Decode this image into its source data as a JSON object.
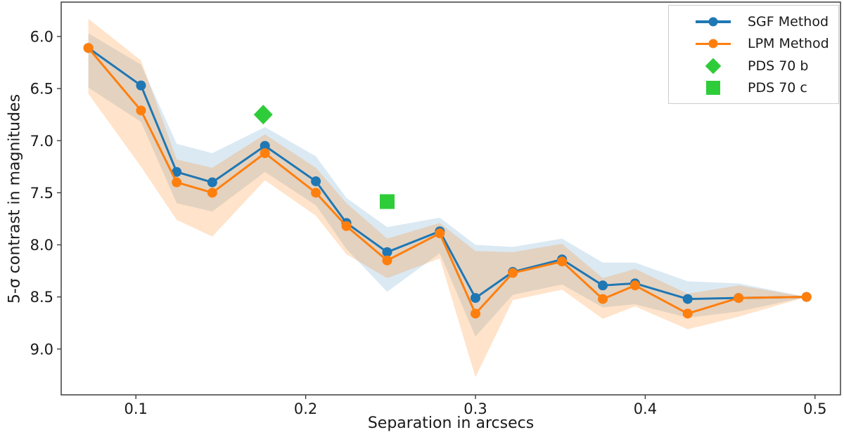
{
  "colors": {
    "sgf_blue": "#1f77b4",
    "lpm_orange": "#ff7f0e",
    "pds_green": "#2fcc3a",
    "spine": "#3f3f3f",
    "tick_text": "#1a1a1a",
    "legend_border": "#cccccc"
  },
  "legend": {
    "items": [
      {
        "label": "SGF Method",
        "swatch": "line-dot-blue"
      },
      {
        "label": "LPM Method",
        "swatch": "line-dot-orange"
      },
      {
        "label": "PDS 70 b",
        "swatch": "green-diamond"
      },
      {
        "label": "PDS 70 c",
        "swatch": "green-square"
      }
    ]
  },
  "chart_data": {
    "type": "line",
    "title": "",
    "xlabel": "Separation in arcsecs",
    "ylabel": "5-σ contrast in magnitudes",
    "legend_position": "upper right",
    "grid": false,
    "y_axis_inverted": true,
    "xlim": [
      0.056,
      0.515
    ],
    "ylim": [
      5.67,
      9.44
    ],
    "x_ticks": [
      0.1,
      0.2,
      0.3,
      0.4,
      0.5
    ],
    "y_ticks": [
      6.0,
      6.5,
      7.0,
      7.5,
      8.0,
      8.5,
      9.0
    ],
    "x": [
      0.072,
      0.103,
      0.124,
      0.145,
      0.176,
      0.206,
      0.224,
      0.248,
      0.279,
      0.3,
      0.322,
      0.351,
      0.375,
      0.394,
      0.425,
      0.455,
      0.495
    ],
    "series": [
      {
        "name": "SGF Method",
        "color": "#1f77b4",
        "band_opacity": 0.16,
        "y": [
          6.11,
          6.47,
          7.3,
          7.4,
          7.05,
          7.39,
          7.79,
          8.07,
          7.87,
          8.51,
          8.26,
          8.14,
          8.39,
          8.37,
          8.52,
          8.51,
          8.5
        ],
        "band_upper": [
          5.97,
          6.27,
          7.03,
          7.12,
          6.87,
          7.15,
          7.55,
          7.83,
          7.74,
          8.0,
          8.02,
          7.94,
          8.17,
          8.17,
          8.35,
          8.37,
          8.5
        ],
        "band_lower": [
          6.49,
          6.82,
          7.6,
          7.68,
          7.3,
          7.62,
          8.04,
          8.45,
          8.08,
          8.88,
          8.48,
          8.38,
          8.6,
          8.57,
          8.7,
          8.64,
          8.5
        ]
      },
      {
        "name": "LPM Method",
        "color": "#ff7f0e",
        "band_opacity": 0.22,
        "y": [
          6.11,
          6.71,
          7.4,
          7.5,
          7.12,
          7.5,
          7.82,
          8.15,
          7.89,
          8.66,
          8.27,
          8.16,
          8.52,
          8.39,
          8.66,
          8.51,
          8.5
        ],
        "band_upper": [
          5.83,
          6.23,
          7.18,
          7.26,
          6.94,
          7.26,
          7.6,
          7.94,
          7.79,
          8.06,
          8.07,
          7.99,
          8.32,
          8.23,
          8.47,
          8.39,
          8.5
        ],
        "band_lower": [
          6.55,
          7.25,
          7.76,
          7.92,
          7.38,
          7.72,
          8.09,
          8.32,
          8.13,
          9.27,
          8.53,
          8.43,
          8.71,
          8.59,
          8.81,
          8.69,
          8.5
        ]
      }
    ],
    "point_markers": [
      {
        "name": "PDS 70 b",
        "shape": "diamond",
        "color": "#2fcc3a",
        "x": 0.175,
        "y": 6.75
      },
      {
        "name": "PDS 70 c",
        "shape": "square",
        "color": "#2fcc3a",
        "x": 0.248,
        "y": 7.585
      }
    ]
  }
}
